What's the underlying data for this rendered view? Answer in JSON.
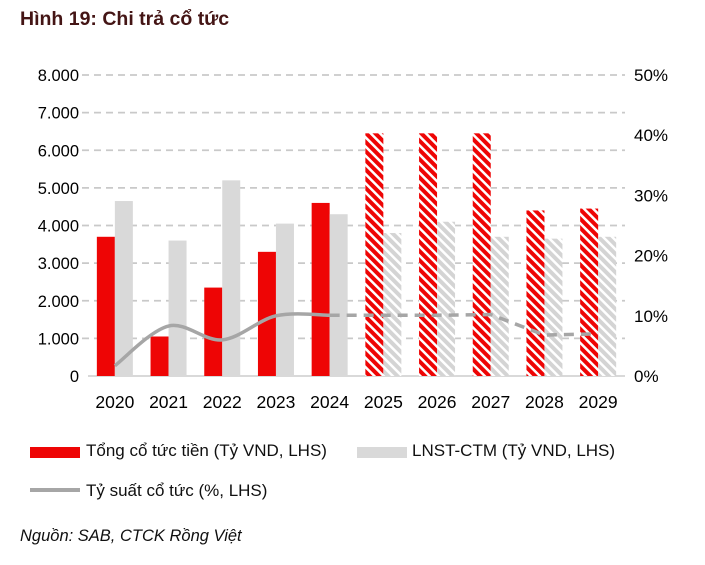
{
  "figure": {
    "title": "Hình 19: Chi trả cổ tức",
    "source": "Nguồn: SAB, CTCK Rồng Việt"
  },
  "colors": {
    "title_text": "#441515",
    "cash_dividend_red": "#ee0505",
    "lnst_gray": "#d9d9d9",
    "yield_line_gray": "#a6a6a6",
    "gridline": "#c9c9c9",
    "baseline": "#d9d9d9",
    "axis_text": "#000000"
  },
  "chart_data": {
    "type": "bar",
    "subtype": "grouped bars with overlaid line (combo chart)",
    "title": "Hình 19: Chi trả cổ tức",
    "categories": [
      "2020",
      "2021",
      "2022",
      "2023",
      "2024",
      "2025",
      "2026",
      "2027",
      "2028",
      "2029"
    ],
    "series": [
      {
        "name": "Tổng cổ tức tiền (Tỷ VND, LHS)",
        "type": "bar",
        "color": "#ee0505",
        "values": [
          3700,
          1050,
          2350,
          3300,
          4600,
          6450,
          6450,
          6450,
          4400,
          4450
        ]
      },
      {
        "name": "LNST-CTM (Tỷ VND, LHS)",
        "type": "bar",
        "color": "#d9d9d9",
        "values": [
          4650,
          3600,
          5200,
          4050,
          4300,
          3800,
          4100,
          3700,
          3650,
          3700
        ]
      },
      {
        "name": "Tỷ suất cổ tức (%, LHS)",
        "type": "line",
        "axis": "right",
        "color": "#a6a6a6",
        "values": [
          1.7,
          8.3,
          6.0,
          10.0,
          10.1,
          10.1,
          10.1,
          10.2,
          6.8,
          7.0
        ]
      }
    ],
    "forecast_start_index": 5,
    "forecast_style": "hatched bars, dashed line from 2024 onward",
    "left_axis": {
      "ticks": [
        "8.000",
        "7.000",
        "6.000",
        "5.000",
        "4.000",
        "3.000",
        "2.000",
        "1.000",
        "0"
      ],
      "min": 0,
      "max": 8000
    },
    "right_axis": {
      "ticks": [
        "50%",
        "40%",
        "30%",
        "20%",
        "10%",
        "0%"
      ],
      "min": 0,
      "max": 50
    },
    "grid": "horizontal dashed gridlines on",
    "legend_position": "bottom-left, two rows"
  },
  "legend": [
    {
      "swatch": "bar",
      "color": "#ee0505",
      "label": "Tổng cổ tức tiền (Tỷ VND, LHS)"
    },
    {
      "swatch": "bar",
      "color": "#d9d9d9",
      "label": "LNST-CTM (Tỷ VND, LHS)"
    },
    {
      "swatch": "line",
      "color": "#a6a6a6",
      "label": "Tỷ suất cổ tức (%, LHS)"
    }
  ]
}
